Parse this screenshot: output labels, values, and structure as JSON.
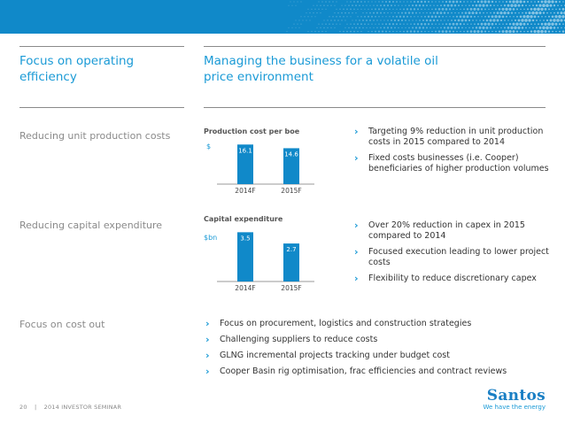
{
  "columns": {
    "left_title": [
      "Focus on operating",
      "efficiency"
    ],
    "right_title": [
      "Managing the business for a volatile oil",
      "price environment"
    ]
  },
  "rows": [
    {
      "label": "Reducing unit production costs",
      "bullets": [
        "Targeting 9% reduction in unit production costs in 2015 compared to 2014",
        "Fixed costs businesses (i.e. Cooper) beneficiaries of higher production volumes"
      ]
    },
    {
      "label": "Reducing capital expenditure",
      "bullets": [
        "Over 20% reduction in capex in 2015 compared to 2014",
        "Focused execution leading to lower project costs",
        "Flexibility to reduce discretionary capex"
      ]
    },
    {
      "label": "Focus on cost out",
      "bullets": [
        "Focus on procurement, logistics and construction strategies",
        "Challenging suppliers to reduce costs",
        "GLNG incremental projects tracking under budget cost",
        "Cooper Basin rig optimisation, frac efficiencies and contract reviews"
      ]
    }
  ],
  "chart_data": [
    {
      "type": "bar",
      "title": "Production cost per boe",
      "ylabel": "$",
      "categories": [
        "2014F",
        "2015F"
      ],
      "values": [
        16.1,
        14.6
      ],
      "data_labels": [
        "16.1",
        "14.6"
      ],
      "ylim": [
        0,
        18
      ],
      "grid": false,
      "color": "#1089c9"
    },
    {
      "type": "bar",
      "title": "Capital expenditure",
      "ylabel": "$bn",
      "categories": [
        "2014F",
        "2015F"
      ],
      "values": [
        3.5,
        2.7
      ],
      "data_labels": [
        "3.5",
        "2.7"
      ],
      "ylim": [
        0,
        3.9
      ],
      "grid": false,
      "color": "#1089c9"
    }
  ],
  "footer": {
    "page": "20",
    "separator": "|",
    "event": "2014 INVESTOR SEMINAR"
  },
  "logo": {
    "name": "Santos",
    "tagline": "We have the energy"
  },
  "colors": {
    "brand_blue": "#1089c9",
    "title_blue": "#1a9ad6",
    "rule_grey": "#8a8a8a"
  },
  "icons": {
    "bullet": "chevron-right-icon"
  }
}
